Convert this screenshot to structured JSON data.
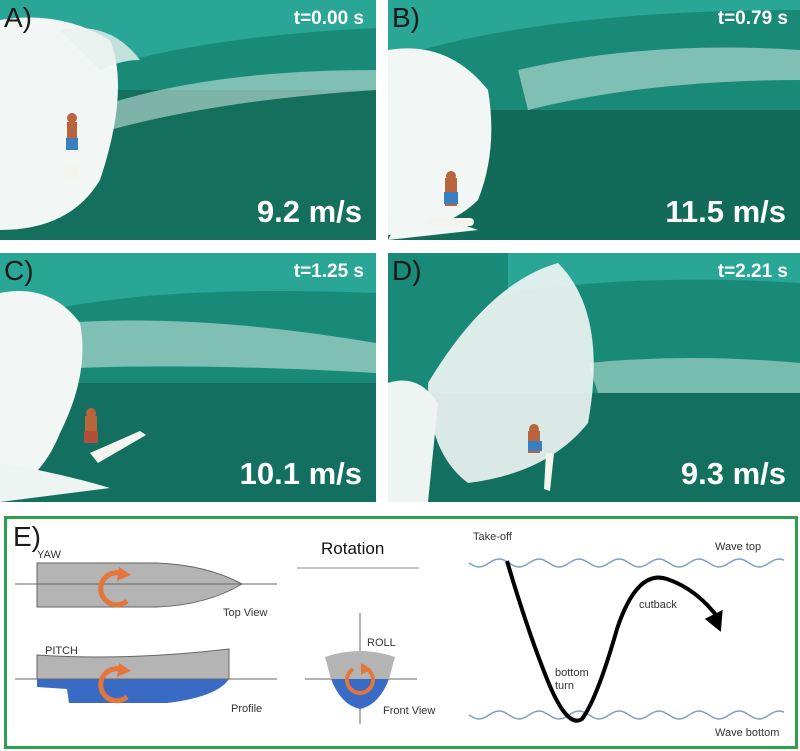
{
  "colors": {
    "sea_dark": "#0f5f4e",
    "sea_mid": "#1f8c7a",
    "sea_light": "#2aa696",
    "foam": "#f2f6f5",
    "skin": "#b8643c",
    "board": "#f4f4ee",
    "frame_green": "#2e9e4f",
    "hull_grey": "#b4b4b4",
    "water_blue": "#3a6bc4",
    "arrow_orange": "#e4753b",
    "wave_line": "#7f9fcf"
  },
  "panels": [
    {
      "label": "A)",
      "time": "t=0.00 s",
      "speed": "9.2 m/s"
    },
    {
      "label": "B)",
      "time": "t=0.79 s",
      "speed": "11.5 m/s"
    },
    {
      "label": "C)",
      "time": "t=1.25 s",
      "speed": "10.1 m/s"
    },
    {
      "label": "D)",
      "time": "t=2.21 s",
      "speed": "9.3 m/s"
    }
  ],
  "diagram": {
    "label": "E)",
    "yaw": "YAW",
    "top_view": "Top View",
    "pitch": "PITCH",
    "profile": "Profile",
    "rotation": "Rotation",
    "roll": "ROLL",
    "front_view": "Front View",
    "take_off": "Take-off",
    "wave_top": "Wave top",
    "cutback": "cutback",
    "bottom_turn": "bottom\nturn",
    "wave_bottom": "Wave bottom"
  }
}
